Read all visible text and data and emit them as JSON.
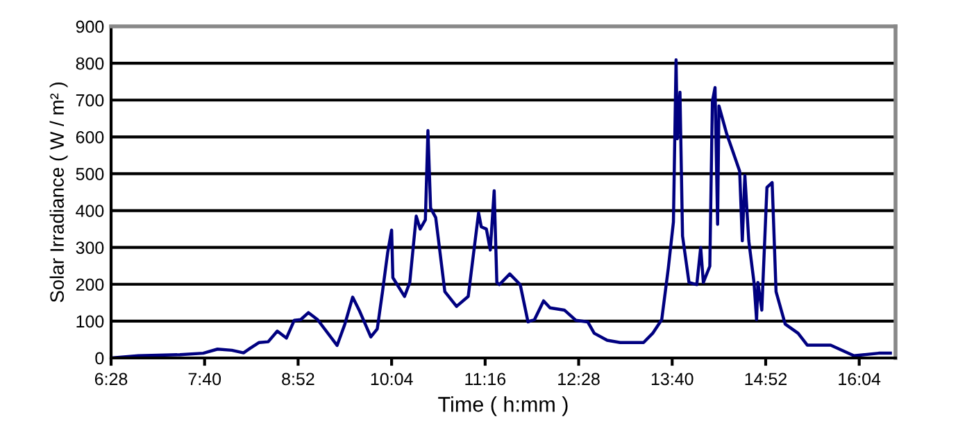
{
  "chart_data": {
    "type": "line",
    "xlabel": "Time ( h:mm )",
    "ylabel": "Solar Irradiance ( W / m² )",
    "x": [
      6.467,
      6.817,
      7.35,
      7.65,
      7.833,
      8.017,
      8.167,
      8.25,
      8.367,
      8.483,
      8.6,
      8.717,
      8.817,
      8.9,
      9.0,
      9.117,
      9.367,
      9.467,
      9.567,
      9.65,
      9.8,
      9.883,
      9.95,
      10.017,
      10.067,
      10.083,
      10.233,
      10.3,
      10.383,
      10.433,
      10.5,
      10.533,
      10.567,
      10.633,
      10.75,
      10.9,
      11.05,
      11.183,
      11.217,
      11.283,
      11.333,
      11.383,
      11.417,
      11.45,
      11.583,
      11.717,
      11.817,
      11.9,
      12.017,
      12.1,
      12.283,
      12.433,
      12.583,
      12.667,
      12.833,
      13.0,
      13.3,
      13.417,
      13.533,
      13.617,
      13.683,
      13.717,
      13.733,
      13.767,
      13.8,
      13.883,
      13.983,
      14.033,
      14.067,
      14.15,
      14.183,
      14.217,
      14.25,
      14.267,
      14.367,
      14.45,
      14.533,
      14.567,
      14.6,
      14.65,
      14.717,
      14.75,
      14.767,
      14.817,
      14.883,
      14.95,
      15.0,
      15.117,
      15.283,
      15.4,
      15.7,
      16.0,
      16.317,
      16.467
    ],
    "series": [
      {
        "color": "#000080",
        "values": [
          0,
          6,
          9,
          13,
          24,
          21,
          14,
          26,
          42,
          44,
          73,
          54,
          102,
          104,
          123,
          104,
          34,
          92,
          165,
          130,
          57,
          79,
          180,
          287,
          347,
          218,
          167,
          205,
          385,
          350,
          375,
          617,
          407,
          381,
          180,
          140,
          167,
          394,
          356,
          350,
          293,
          454,
          205,
          199,
          228,
          199,
          98,
          104,
          155,
          136,
          130,
          102,
          98,
          67,
          48,
          42,
          42,
          67,
          104,
          243,
          369,
          809,
          595,
          721,
          331,
          205,
          199,
          300,
          205,
          249,
          696,
          734,
          363,
          684,
          608,
          558,
          507,
          318,
          495,
          318,
          205,
          104,
          205,
          130,
          463,
          476,
          180,
          92,
          67,
          35,
          35,
          6,
          13,
          13
        ]
      }
    ],
    "xlim": [
      6.467,
      16.533
    ],
    "xticks": [
      {
        "value": 6.467,
        "label": "6:28"
      },
      {
        "value": 7.667,
        "label": "7:40"
      },
      {
        "value": 8.867,
        "label": "8:52"
      },
      {
        "value": 10.067,
        "label": "10:04"
      },
      {
        "value": 11.267,
        "label": "11:16"
      },
      {
        "value": 12.467,
        "label": "12:28"
      },
      {
        "value": 13.667,
        "label": "13:40"
      },
      {
        "value": 14.867,
        "label": "14:52"
      },
      {
        "value": 16.067,
        "label": "16:04"
      }
    ],
    "ylim": [
      0,
      900
    ],
    "yticks": [
      0,
      100,
      200,
      300,
      400,
      500,
      600,
      700,
      800,
      900
    ],
    "grid": "y",
    "marker": "none",
    "line_style": "solid"
  }
}
